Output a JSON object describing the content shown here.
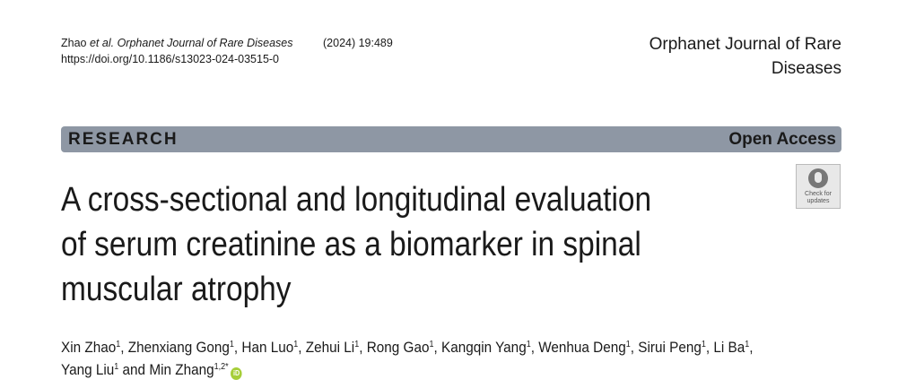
{
  "citation": {
    "authors_short": "Zhao",
    "et_al": "et al.",
    "journal_italic": "Orphanet Journal of Rare Diseases",
    "year_volume": "(2024) 19:489",
    "doi": "https://doi.org/10.1186/s13023-024-03515-0"
  },
  "journal_name": {
    "line1": "Orphanet Journal of Rare",
    "line2": "Diseases"
  },
  "banner": {
    "type": "RESEARCH",
    "access": "Open Access",
    "color": "#8e97a4"
  },
  "title": {
    "line1": "A cross-sectional and longitudinal evaluation",
    "line2": "of serum creatinine as a biomarker in spinal",
    "line3": "muscular atrophy"
  },
  "check_updates": {
    "line1": "Check for",
    "line2": "updates"
  },
  "authors": [
    {
      "name": "Xin Zhao",
      "aff": "1"
    },
    {
      "name": "Zhenxiang Gong",
      "aff": "1"
    },
    {
      "name": "Han Luo",
      "aff": "1"
    },
    {
      "name": "Zehui Li",
      "aff": "1"
    },
    {
      "name": "Rong Gao",
      "aff": "1"
    },
    {
      "name": "Kangqin Yang",
      "aff": "1"
    },
    {
      "name": "Wenhua Deng",
      "aff": "1"
    },
    {
      "name": "Sirui Peng",
      "aff": "1"
    },
    {
      "name": "Li Ba",
      "aff": "1"
    },
    {
      "name": "Yang Liu",
      "aff": "1"
    },
    {
      "name": "Min Zhang",
      "aff": "1,2*"
    }
  ],
  "authors_and": "and",
  "orcid_label": "iD"
}
